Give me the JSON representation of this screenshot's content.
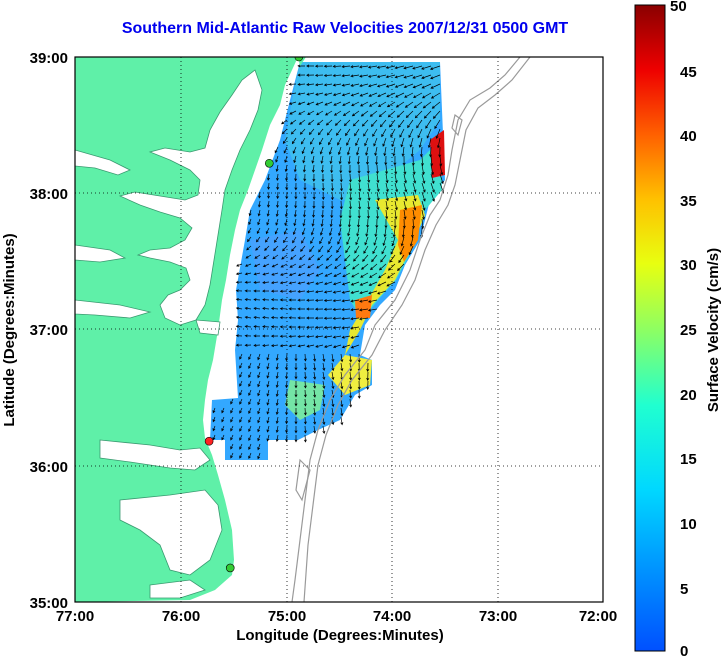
{
  "title": "Southern Mid-Atlantic Raw Velocities 2007/12/31 0500 GMT",
  "x_axis": {
    "label": "Longitude (Degrees:Minutes)",
    "ticks": [
      "77:00",
      "76:00",
      "75:00",
      "74:00",
      "73:00",
      "72:00"
    ]
  },
  "y_axis": {
    "label": "Latitude (Degrees:Minutes)",
    "ticks": [
      "39:00",
      "38:00",
      "37:00",
      "36:00",
      "35:00"
    ]
  },
  "colorbar": {
    "label": "Surface Velocity (cm/s)",
    "ticks": [
      "50",
      "45",
      "40",
      "35",
      "30",
      "25",
      "20",
      "15",
      "10",
      "5",
      "0"
    ],
    "min": 0,
    "max": 50
  },
  "colors": {
    "land": "#5ff0a8",
    "water": "#ffffff",
    "title": "#0000ee",
    "bathymetry": "#9a9a9a",
    "station_active": "#33cc33",
    "station_alert": "#ff2222"
  },
  "stations": [
    {
      "lon": -74.88,
      "lat": 39.0,
      "status": "active"
    },
    {
      "lon": -75.16,
      "lat": 38.22,
      "status": "active"
    },
    {
      "lon": -75.73,
      "lat": 36.18,
      "status": "alert"
    },
    {
      "lon": -75.53,
      "lat": 35.25,
      "status": "active"
    }
  ],
  "map_extent": {
    "lon_min": -77,
    "lon_max": -72,
    "lat_min": 35,
    "lat_max": 39
  },
  "grid": true
}
